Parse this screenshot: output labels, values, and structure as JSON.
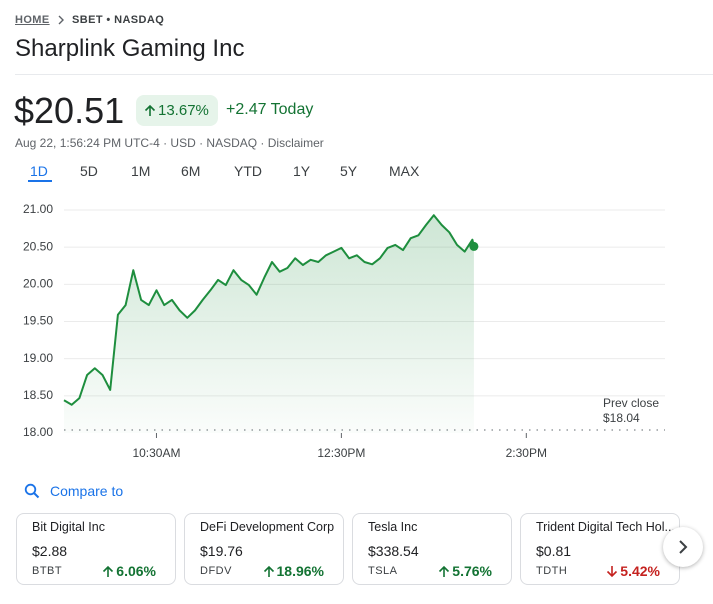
{
  "header": {
    "breadcrumb": [
      "HOME",
      "SBET • NASDAQ"
    ],
    "title": "Sharplink Gaming Inc"
  },
  "quote": {
    "price": "$20.51",
    "change_percent": "13.67%",
    "change": "+2.47 Today",
    "meta": "Aug 22, 1:56:24 PM UTC-4 · USD · NASDAQ · Disclaimer"
  },
  "ranges": [
    "1D",
    "5D",
    "1M",
    "6M",
    "YTD",
    "1Y",
    "5Y",
    "MAX"
  ],
  "chart_data": {
    "type": "line",
    "x": [
      570,
      575,
      580,
      585,
      590,
      595,
      600,
      605,
      610,
      615,
      620,
      625,
      630,
      635,
      640,
      645,
      650,
      655,
      660,
      665,
      670,
      675,
      680,
      685,
      690,
      695,
      700,
      705,
      710,
      715,
      720,
      725,
      730,
      735,
      740,
      745,
      750,
      755,
      760,
      765,
      770,
      775,
      780,
      785,
      790,
      795,
      800,
      805,
      810,
      815,
      820,
      825,
      830,
      835,
      836
    ],
    "values": [
      18.44,
      18.38,
      18.47,
      18.78,
      18.87,
      18.78,
      18.58,
      19.59,
      19.72,
      20.19,
      19.79,
      19.72,
      19.92,
      19.72,
      19.79,
      19.65,
      19.55,
      19.65,
      19.79,
      19.92,
      20.06,
      19.99,
      20.19,
      20.06,
      19.99,
      19.86,
      20.09,
      20.3,
      20.17,
      20.22,
      20.35,
      20.26,
      20.33,
      20.3,
      20.39,
      20.44,
      20.49,
      20.35,
      20.39,
      20.3,
      20.27,
      20.35,
      20.49,
      20.53,
      20.46,
      20.62,
      20.66,
      20.8,
      20.93,
      20.8,
      20.7,
      20.53,
      20.44,
      20.6,
      20.51
    ],
    "color": "#1e8e3e",
    "xlim": [
      570,
      960
    ],
    "xticks": [
      {
        "value": 630,
        "label": "10:30AM"
      },
      {
        "value": 750,
        "label": "12:30PM"
      },
      {
        "value": 870,
        "label": "2:30PM"
      }
    ],
    "ylim": [
      18,
      21
    ],
    "yticks": [
      {
        "value": 18,
        "label": "18.00"
      },
      {
        "value": 18.5,
        "label": "18.50"
      },
      {
        "value": 19,
        "label": "19.00"
      },
      {
        "value": 19.5,
        "label": "19.50"
      },
      {
        "value": 20,
        "label": "20.00"
      },
      {
        "value": 20.5,
        "label": "20.50"
      },
      {
        "value": 21,
        "label": "21.00"
      }
    ],
    "grid": true,
    "prev_close": {
      "title": "Prev close",
      "value": 18.04,
      "label": "$18.04"
    }
  },
  "compare": {
    "title": "Compare to",
    "cards": [
      {
        "name": "Bit Digital Inc",
        "price": "$2.88",
        "ticker": "BTBT",
        "change": "6.06%"
      },
      {
        "name": "DeFi Development Corp",
        "price": "$19.76",
        "ticker": "DFDV",
        "change": "18.96%"
      },
      {
        "name": "Tesla Inc",
        "price": "$338.54",
        "ticker": "TSLA",
        "change": "5.76%"
      },
      {
        "name": "Trident Digital Tech Hol...",
        "price": "$0.81",
        "ticker": "TDTH",
        "change": "5.42%"
      }
    ]
  }
}
